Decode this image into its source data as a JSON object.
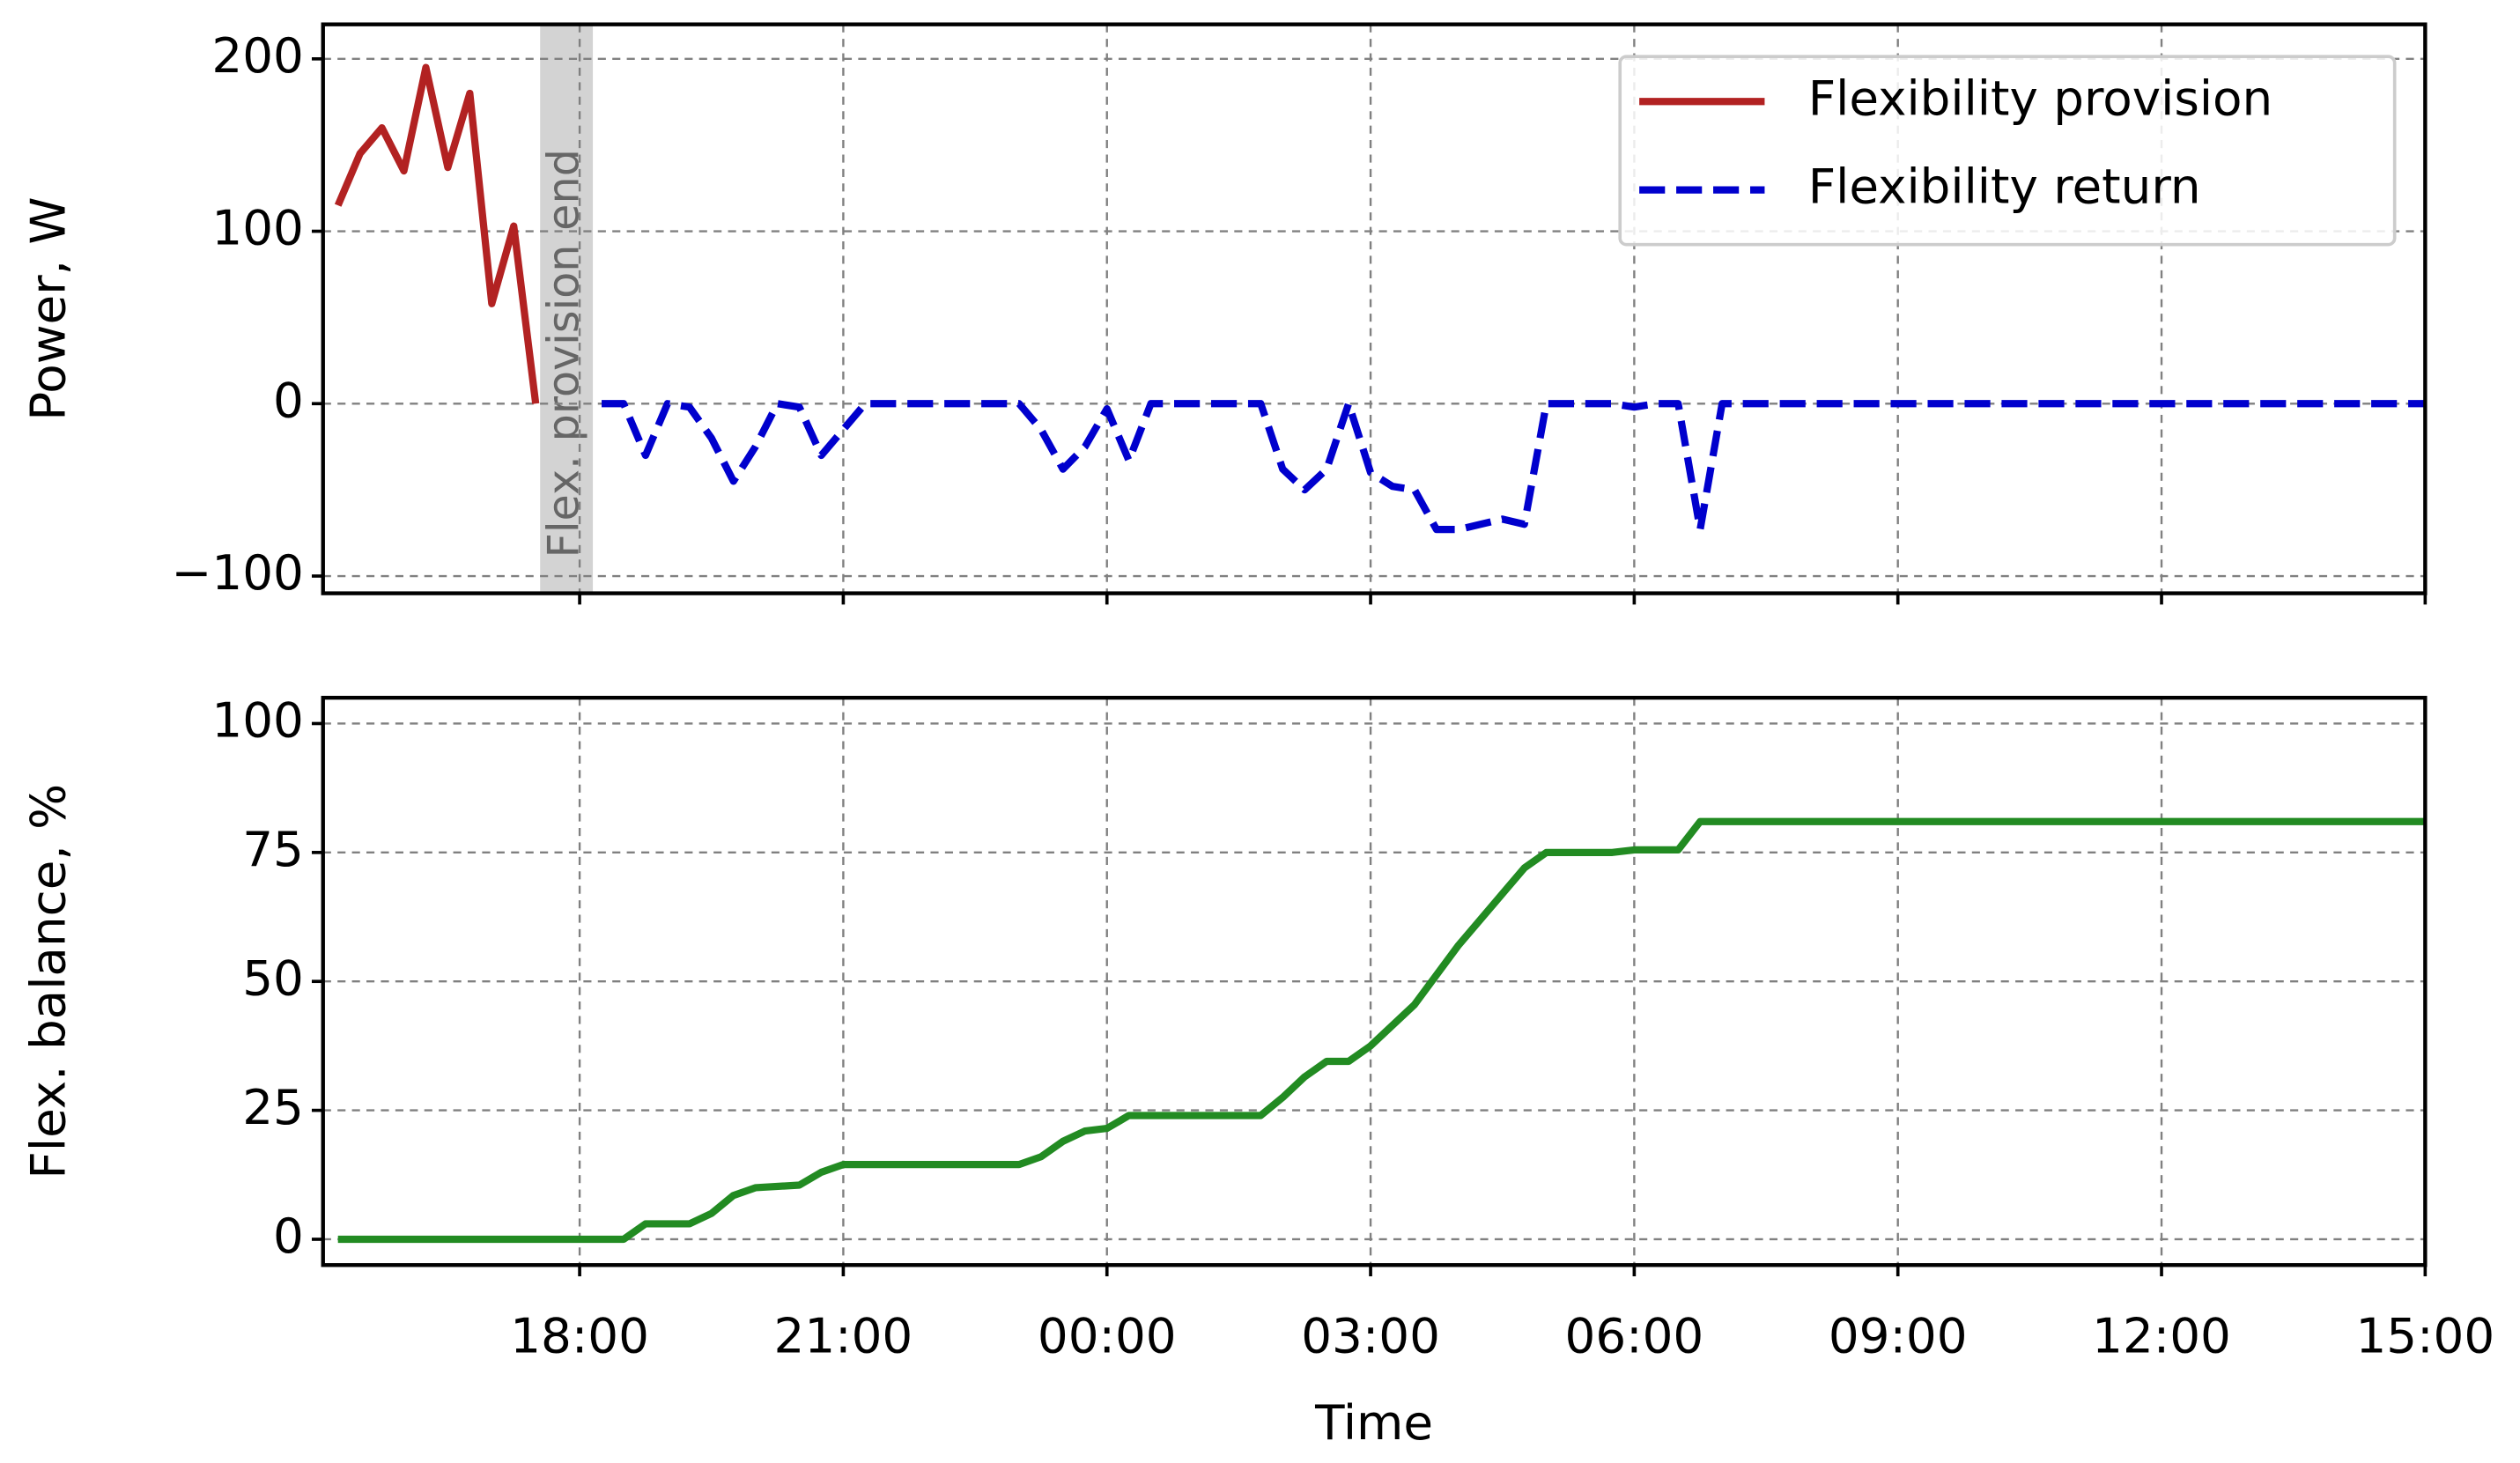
{
  "chart_data": [
    {
      "type": "line",
      "y_label": "Power, W",
      "xlim": [
        15.08,
        39
      ],
      "xticks": [
        18,
        21,
        24,
        27,
        30,
        33,
        36,
        39
      ],
      "ylim": [
        -110,
        220
      ],
      "yticks": [
        {
          "value": -100,
          "label": "−100"
        },
        0,
        100,
        200
      ],
      "grid": true,
      "legend": "upper right",
      "span": {
        "x": [
          17.55,
          18.15
        ],
        "label": "Flex. provision end",
        "color": "#d3d3d3"
      },
      "series": [
        {
          "name": "Flexibility provision",
          "color": "#b22222",
          "linestyle": "solid",
          "x": [
            15.25,
            15.5,
            15.75,
            16,
            16.25,
            16.5,
            16.75,
            17,
            17.25,
            17.5
          ],
          "values": [
            115,
            145,
            160,
            135,
            195,
            137,
            180,
            58,
            103,
            0
          ]
        },
        {
          "name": "Flexibility return",
          "color": "#0000cd",
          "linestyle": "dashed",
          "x": [
            18.25,
            18.5,
            18.75,
            19,
            19.25,
            19.5,
            19.75,
            20,
            20.25,
            20.5,
            20.75,
            21,
            21.25,
            23,
            23.25,
            23.5,
            23.75,
            24,
            24.25,
            24.5,
            25.75,
            26,
            26.25,
            26.5,
            26.75,
            27,
            27.25,
            27.5,
            27.75,
            28,
            28.25,
            28.5,
            28.75,
            29,
            29.75,
            30,
            30.25,
            30.5,
            30.75,
            31,
            39
          ],
          "values": [
            0,
            0,
            -30,
            0,
            -2,
            -20,
            -45,
            -25,
            0,
            -2,
            -30,
            -15,
            0,
            0,
            -15,
            -38,
            -25,
            -3,
            -33,
            0,
            0,
            -38,
            -50,
            -38,
            0,
            -40,
            -48,
            -50,
            -73,
            -73,
            -70,
            -67,
            -70,
            0,
            0,
            -2,
            0,
            0,
            -73,
            0,
            0
          ]
        }
      ]
    },
    {
      "type": "line",
      "y_label": "Flex. balance, %",
      "x_label": "Time",
      "xlim": [
        15.08,
        39
      ],
      "xticks": [
        {
          "value": 18,
          "label": "18:00"
        },
        {
          "value": 21,
          "label": "21:00"
        },
        {
          "value": 24,
          "label": "00:00"
        },
        {
          "value": 27,
          "label": "03:00"
        },
        {
          "value": 30,
          "label": "06:00"
        },
        {
          "value": 33,
          "label": "09:00"
        },
        {
          "value": 36,
          "label": "12:00"
        },
        {
          "value": 39,
          "label": "15:00"
        }
      ],
      "ylim": [
        -5,
        105
      ],
      "yticks": [
        0,
        25,
        50,
        75,
        100
      ],
      "grid": true,
      "series": [
        {
          "color": "#228b22",
          "linestyle": "solid",
          "x": [
            15.25,
            18.5,
            18.75,
            19.25,
            19.5,
            19.75,
            20,
            20.5,
            20.75,
            21,
            23,
            23.25,
            23.5,
            23.75,
            24,
            24.25,
            25.75,
            26,
            26.25,
            26.5,
            26.75,
            27,
            27.5,
            28,
            28.5,
            28.75,
            29,
            29.75,
            30,
            30.5,
            30.75,
            39
          ],
          "values": [
            0,
            0,
            3,
            3,
            5,
            8.5,
            10,
            10.5,
            13,
            14.5,
            14.5,
            16,
            19,
            21,
            21.5,
            24,
            24,
            27.5,
            31.5,
            34.5,
            34.5,
            37.5,
            45.5,
            57,
            67,
            72,
            75,
            75,
            75.5,
            75.5,
            81,
            81
          ]
        }
      ]
    }
  ]
}
